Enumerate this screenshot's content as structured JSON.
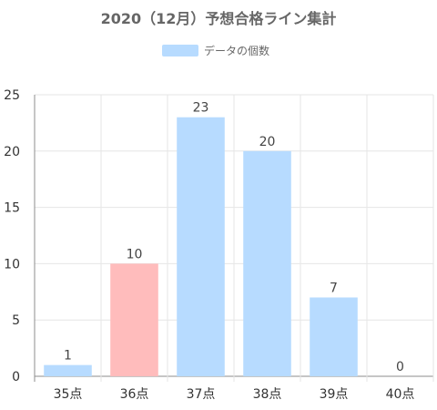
{
  "chart_data": {
    "type": "bar",
    "title": "2020（12月）予想合格ライン集計",
    "categories": [
      "35点",
      "36点",
      "37点",
      "38点",
      "39点",
      "40点"
    ],
    "series": [
      {
        "name": "データの個数",
        "values": [
          1,
          10,
          23,
          20,
          7,
          0
        ]
      }
    ],
    "highlight_index": 1,
    "colors": {
      "bar": "#b7dbff",
      "highlight": "#ffbcbc",
      "legend": "#b7dbff",
      "grid": "#e6e6e6",
      "axis": "#8c8c8c"
    },
    "ylim": [
      0,
      25
    ],
    "y_ticks": [
      0,
      5,
      10,
      15,
      20,
      25
    ],
    "grid": true,
    "legend_position": "top"
  }
}
